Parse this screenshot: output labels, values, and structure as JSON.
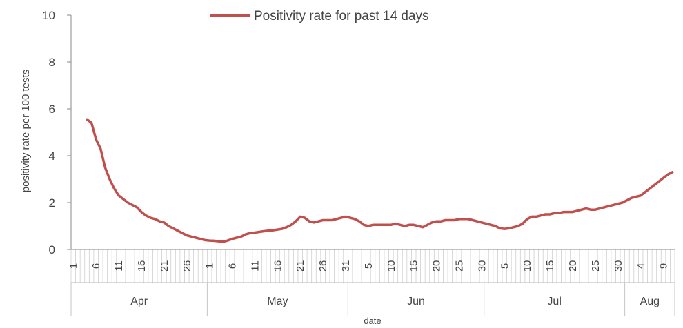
{
  "chart_data": {
    "type": "line",
    "title": "",
    "xlabel": "date",
    "ylabel": "positivity rate per 100 tests",
    "ylim": [
      0,
      10
    ],
    "y_ticks": [
      "0",
      "2",
      "4",
      "6",
      "8",
      "10"
    ],
    "legend": {
      "placement": "top-center",
      "label": "Positivity rate for past 14 days"
    },
    "x_day_tick_labels": [
      "1",
      "6",
      "11",
      "16",
      "21",
      "26",
      "1",
      "6",
      "11",
      "16",
      "21",
      "26",
      "31",
      "5",
      "10",
      "15",
      "20",
      "25",
      "30",
      "5",
      "10",
      "15",
      "20",
      "25",
      "30",
      "4",
      "9"
    ],
    "months": [
      {
        "label": "Apr",
        "start": "2020-04-01",
        "end": "2020-04-30"
      },
      {
        "label": "May",
        "start": "2020-05-01",
        "end": "2020-05-31"
      },
      {
        "label": "Jun",
        "start": "2020-06-01",
        "end": "2020-06-30"
      },
      {
        "label": "Jul",
        "start": "2020-07-01",
        "end": "2020-07-31"
      },
      {
        "label": "Aug",
        "start": "2020-08-01",
        "end": "2020-08-11"
      }
    ],
    "series": [
      {
        "name": "Positivity rate for past 14 days",
        "color": "#c0504d",
        "points": [
          [
            "2020-04-04",
            5.55
          ],
          [
            "2020-04-05",
            5.4
          ],
          [
            "2020-04-06",
            4.7
          ],
          [
            "2020-04-07",
            4.3
          ],
          [
            "2020-04-08",
            3.5
          ],
          [
            "2020-04-09",
            3.0
          ],
          [
            "2020-04-10",
            2.6
          ],
          [
            "2020-04-11",
            2.3
          ],
          [
            "2020-04-12",
            2.15
          ],
          [
            "2020-04-13",
            2.0
          ],
          [
            "2020-04-14",
            1.9
          ],
          [
            "2020-04-15",
            1.8
          ],
          [
            "2020-04-16",
            1.6
          ],
          [
            "2020-04-17",
            1.45
          ],
          [
            "2020-04-18",
            1.35
          ],
          [
            "2020-04-19",
            1.3
          ],
          [
            "2020-04-20",
            1.2
          ],
          [
            "2020-04-21",
            1.15
          ],
          [
            "2020-04-22",
            1.0
          ],
          [
            "2020-04-23",
            0.9
          ],
          [
            "2020-04-24",
            0.8
          ],
          [
            "2020-04-25",
            0.7
          ],
          [
            "2020-04-26",
            0.6
          ],
          [
            "2020-04-27",
            0.55
          ],
          [
            "2020-04-28",
            0.5
          ],
          [
            "2020-04-29",
            0.45
          ],
          [
            "2020-04-30",
            0.4
          ],
          [
            "2020-05-01",
            0.38
          ],
          [
            "2020-05-02",
            0.37
          ],
          [
            "2020-05-03",
            0.35
          ],
          [
            "2020-05-04",
            0.33
          ],
          [
            "2020-05-05",
            0.38
          ],
          [
            "2020-05-06",
            0.45
          ],
          [
            "2020-05-07",
            0.5
          ],
          [
            "2020-05-08",
            0.55
          ],
          [
            "2020-05-09",
            0.65
          ],
          [
            "2020-05-10",
            0.7
          ],
          [
            "2020-05-11",
            0.72
          ],
          [
            "2020-05-12",
            0.75
          ],
          [
            "2020-05-13",
            0.78
          ],
          [
            "2020-05-14",
            0.8
          ],
          [
            "2020-05-15",
            0.82
          ],
          [
            "2020-05-16",
            0.85
          ],
          [
            "2020-05-17",
            0.88
          ],
          [
            "2020-05-18",
            0.95
          ],
          [
            "2020-05-19",
            1.05
          ],
          [
            "2020-05-20",
            1.2
          ],
          [
            "2020-05-21",
            1.4
          ],
          [
            "2020-05-22",
            1.35
          ],
          [
            "2020-05-23",
            1.2
          ],
          [
            "2020-05-24",
            1.15
          ],
          [
            "2020-05-25",
            1.2
          ],
          [
            "2020-05-26",
            1.25
          ],
          [
            "2020-05-27",
            1.25
          ],
          [
            "2020-05-28",
            1.25
          ],
          [
            "2020-05-29",
            1.3
          ],
          [
            "2020-05-30",
            1.35
          ],
          [
            "2020-05-31",
            1.4
          ],
          [
            "2020-06-01",
            1.35
          ],
          [
            "2020-06-02",
            1.3
          ],
          [
            "2020-06-03",
            1.2
          ],
          [
            "2020-06-04",
            1.05
          ],
          [
            "2020-06-05",
            1.0
          ],
          [
            "2020-06-06",
            1.05
          ],
          [
            "2020-06-07",
            1.05
          ],
          [
            "2020-06-08",
            1.05
          ],
          [
            "2020-06-09",
            1.05
          ],
          [
            "2020-06-10",
            1.05
          ],
          [
            "2020-06-11",
            1.1
          ],
          [
            "2020-06-12",
            1.05
          ],
          [
            "2020-06-13",
            1.0
          ],
          [
            "2020-06-14",
            1.05
          ],
          [
            "2020-06-15",
            1.05
          ],
          [
            "2020-06-16",
            1.0
          ],
          [
            "2020-06-17",
            0.95
          ],
          [
            "2020-06-18",
            1.05
          ],
          [
            "2020-06-19",
            1.15
          ],
          [
            "2020-06-20",
            1.2
          ],
          [
            "2020-06-21",
            1.2
          ],
          [
            "2020-06-22",
            1.25
          ],
          [
            "2020-06-23",
            1.25
          ],
          [
            "2020-06-24",
            1.25
          ],
          [
            "2020-06-25",
            1.3
          ],
          [
            "2020-06-26",
            1.3
          ],
          [
            "2020-06-27",
            1.3
          ],
          [
            "2020-06-28",
            1.25
          ],
          [
            "2020-06-29",
            1.2
          ],
          [
            "2020-06-30",
            1.15
          ],
          [
            "2020-07-01",
            1.1
          ],
          [
            "2020-07-02",
            1.05
          ],
          [
            "2020-07-03",
            1.0
          ],
          [
            "2020-07-04",
            0.9
          ],
          [
            "2020-07-05",
            0.88
          ],
          [
            "2020-07-06",
            0.9
          ],
          [
            "2020-07-07",
            0.95
          ],
          [
            "2020-07-08",
            1.0
          ],
          [
            "2020-07-09",
            1.1
          ],
          [
            "2020-07-10",
            1.3
          ],
          [
            "2020-07-11",
            1.4
          ],
          [
            "2020-07-12",
            1.4
          ],
          [
            "2020-07-13",
            1.45
          ],
          [
            "2020-07-14",
            1.5
          ],
          [
            "2020-07-15",
            1.5
          ],
          [
            "2020-07-16",
            1.55
          ],
          [
            "2020-07-17",
            1.55
          ],
          [
            "2020-07-18",
            1.6
          ],
          [
            "2020-07-19",
            1.6
          ],
          [
            "2020-07-20",
            1.6
          ],
          [
            "2020-07-21",
            1.65
          ],
          [
            "2020-07-22",
            1.7
          ],
          [
            "2020-07-23",
            1.75
          ],
          [
            "2020-07-24",
            1.7
          ],
          [
            "2020-07-25",
            1.7
          ],
          [
            "2020-07-26",
            1.75
          ],
          [
            "2020-07-27",
            1.8
          ],
          [
            "2020-07-28",
            1.85
          ],
          [
            "2020-07-29",
            1.9
          ],
          [
            "2020-07-30",
            1.95
          ],
          [
            "2020-07-31",
            2.0
          ],
          [
            "2020-08-01",
            2.1
          ],
          [
            "2020-08-02",
            2.2
          ],
          [
            "2020-08-03",
            2.25
          ],
          [
            "2020-08-04",
            2.3
          ],
          [
            "2020-08-05",
            2.45
          ],
          [
            "2020-08-06",
            2.6
          ],
          [
            "2020-08-07",
            2.75
          ],
          [
            "2020-08-08",
            2.9
          ],
          [
            "2020-08-09",
            3.05
          ],
          [
            "2020-08-10",
            3.2
          ],
          [
            "2020-08-11",
            3.3
          ]
        ]
      }
    ]
  }
}
